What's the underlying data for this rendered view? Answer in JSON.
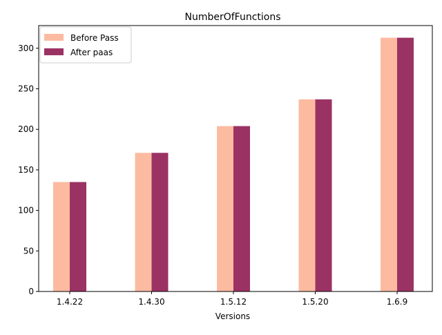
{
  "chart_data": {
    "type": "bar",
    "title": "NumberOfFunctions",
    "xlabel": "Versions",
    "ylabel": "",
    "categories": [
      "1.4.22",
      "1.4.30",
      "1.5.12",
      "1.5.20",
      "1.6.9"
    ],
    "series": [
      {
        "name": "Before Pass",
        "values": [
          135,
          171,
          204,
          237,
          313
        ],
        "color": "#fcbba1"
      },
      {
        "name": "After paas",
        "values": [
          135,
          171,
          204,
          237,
          313
        ],
        "color": "#9b3264"
      }
    ],
    "ylim": [
      0,
      328
    ],
    "yticks": [
      "0",
      "50",
      "100",
      "150",
      "200",
      "250",
      "300"
    ],
    "grid": false,
    "legend_position": "top-left"
  }
}
